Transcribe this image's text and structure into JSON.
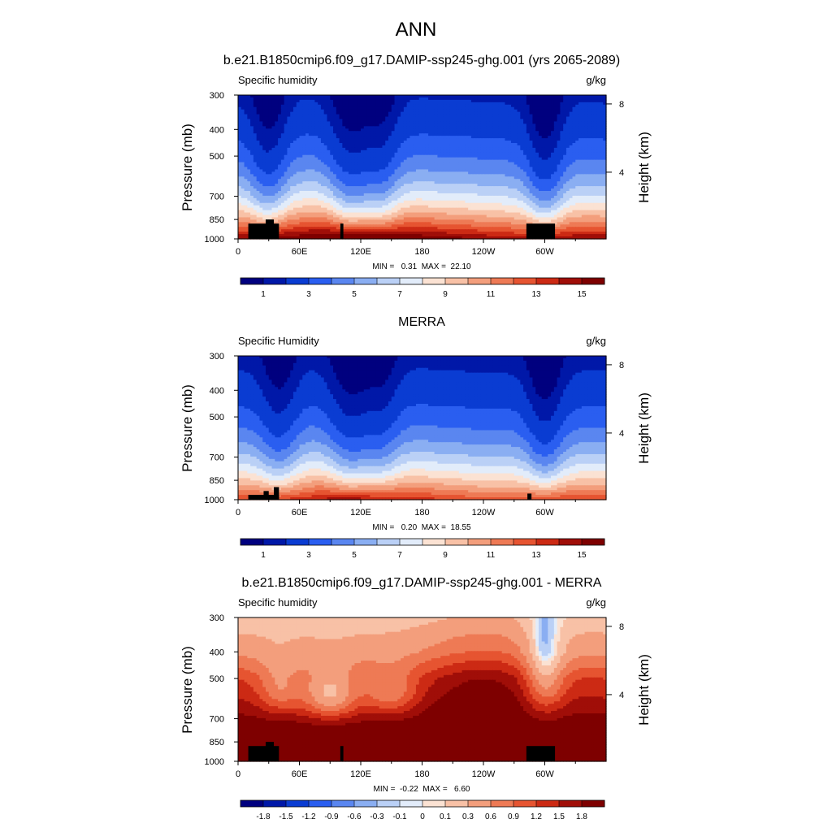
{
  "figure": {
    "main_title": "ANN"
  },
  "colors": {
    "abs_scale": [
      "#00007f",
      "#0018a8",
      "#0a3cd2",
      "#2a5ef0",
      "#5a86f0",
      "#8aaef2",
      "#bad0f6",
      "#e2ecfa",
      "#fbe2d3",
      "#f8c1a6",
      "#f39e7c",
      "#ee7a55",
      "#e65431",
      "#cc2a14",
      "#a00e08",
      "#7e0000"
    ],
    "diff_scale": [
      "#00007f",
      "#0018a8",
      "#0a3cd2",
      "#2a5ef0",
      "#5a86f0",
      "#8aaef2",
      "#bad0f6",
      "#e2ecfa",
      "#fbe2d3",
      "#f8c1a6",
      "#f39e7c",
      "#ee7a55",
      "#e65431",
      "#cc2a14",
      "#a00e08",
      "#7e0000"
    ],
    "land_mask": "#000000"
  },
  "chart_data": [
    {
      "type": "heatmap",
      "title": "b.e21.B1850cmip6.f09_g17.DAMIP-ssp245-ghg.001 (yrs 2065-2089)",
      "left_label": "Specific humidity",
      "right_label": "g/kg",
      "ylabel": "Pressure (mb)",
      "ylabel_right": "Height (km)",
      "x_ticks": [
        "0",
        "60E",
        "120E",
        "180",
        "120W",
        "60W"
      ],
      "x_tick_lon": [
        0,
        60,
        120,
        180,
        240,
        300
      ],
      "xlim": [
        0,
        360
      ],
      "y_ticks": [
        "300",
        "400",
        "500",
        "700",
        "850",
        "1000"
      ],
      "y_tick_values": [
        300,
        400,
        500,
        700,
        850,
        1000
      ],
      "ylim": [
        1000,
        300
      ],
      "y_scale": "log",
      "height_ticks": [
        "8",
        "4"
      ],
      "height_tick_values": [
        8,
        4
      ],
      "stats_text": "MIN =   0.31  MAX =  22.10",
      "min": 0.31,
      "max": 22.1,
      "colorbar_labels": [
        "1",
        "3",
        "5",
        "7",
        "9",
        "11",
        "13",
        "15"
      ],
      "levels": [
        0.5,
        1,
        2,
        3,
        4,
        5,
        6,
        7,
        8,
        9,
        10,
        11,
        12,
        13,
        14,
        15
      ],
      "field": {
        "surface_q": [
          [
            0,
            14
          ],
          [
            20,
            14.5
          ],
          [
            35,
            15
          ],
          [
            60,
            15
          ],
          [
            90,
            16
          ],
          [
            120,
            16
          ],
          [
            150,
            15.5
          ],
          [
            180,
            15
          ],
          [
            210,
            14.5
          ],
          [
            240,
            14
          ],
          [
            270,
            13.5
          ],
          [
            300,
            14
          ],
          [
            330,
            14
          ],
          [
            360,
            14
          ]
        ],
        "moist_lon": [
          [
            30,
            1.1
          ],
          [
            100,
            0.5
          ],
          [
            115,
            0.9
          ],
          [
            140,
            0.9
          ],
          [
            300,
            1.3
          ]
        ]
      },
      "land_blocks": [
        {
          "lon_range": [
            10,
            40
          ],
          "p_top": 880
        },
        {
          "lon_range": [
            27,
            35
          ],
          "p_top": 850
        },
        {
          "lon_range": [
            100,
            103
          ],
          "p_top": 880
        },
        {
          "lon_range": [
            282,
            310
          ],
          "p_top": 880
        }
      ]
    },
    {
      "type": "heatmap",
      "title": "MERRA",
      "left_label": "Specific Humidity",
      "right_label": "g/kg",
      "ylabel": "Pressure (mb)",
      "ylabel_right": "Height (km)",
      "x_ticks": [
        "0",
        "60E",
        "120E",
        "180",
        "120W",
        "60W"
      ],
      "x_tick_lon": [
        0,
        60,
        120,
        180,
        240,
        300
      ],
      "xlim": [
        0,
        360
      ],
      "y_ticks": [
        "300",
        "400",
        "500",
        "700",
        "850",
        "1000"
      ],
      "y_tick_values": [
        300,
        400,
        500,
        700,
        850,
        1000
      ],
      "ylim": [
        1000,
        300
      ],
      "y_scale": "log",
      "height_ticks": [
        "8",
        "4"
      ],
      "height_tick_values": [
        8,
        4
      ],
      "stats_text": "MIN =   0.20  MAX =  18.55",
      "min": 0.2,
      "max": 18.55,
      "colorbar_labels": [
        "1",
        "3",
        "5",
        "7",
        "9",
        "11",
        "13",
        "15"
      ],
      "levels": [
        0.5,
        1,
        2,
        3,
        4,
        5,
        6,
        7,
        8,
        9,
        10,
        11,
        12,
        13,
        14,
        15
      ],
      "field": {
        "surface_q": [
          [
            0,
            12
          ],
          [
            30,
            12
          ],
          [
            60,
            12.5
          ],
          [
            90,
            13.5
          ],
          [
            120,
            13.5
          ],
          [
            150,
            13
          ],
          [
            180,
            12.5
          ],
          [
            210,
            12
          ],
          [
            240,
            11.5
          ],
          [
            270,
            11.5
          ],
          [
            300,
            12
          ],
          [
            330,
            12
          ],
          [
            360,
            12
          ]
        ],
        "moist_lon": [
          [
            40,
            0.9
          ],
          [
            100,
            0.5
          ],
          [
            115,
            0.8
          ],
          [
            140,
            0.8
          ],
          [
            300,
            1.2
          ]
        ]
      },
      "land_blocks": [
        {
          "lon_range": [
            10,
            40
          ],
          "p_top": 960
        },
        {
          "lon_range": [
            25,
            30
          ],
          "p_top": 930
        },
        {
          "lon_range": [
            35,
            40
          ],
          "p_top": 900
        },
        {
          "lon_range": [
            283,
            287
          ],
          "p_top": 950
        }
      ]
    },
    {
      "type": "heatmap",
      "title": "b.e21.B1850cmip6.f09_g17.DAMIP-ssp245-ghg.001 - MERRA",
      "left_label": "Specific humidity",
      "right_label": "g/kg",
      "ylabel": "Pressure (mb)",
      "ylabel_right": "Height (km)",
      "x_ticks": [
        "0",
        "60E",
        "120E",
        "180",
        "120W",
        "60W"
      ],
      "x_tick_lon": [
        0,
        60,
        120,
        180,
        240,
        300
      ],
      "xlim": [
        0,
        360
      ],
      "y_ticks": [
        "300",
        "400",
        "500",
        "700",
        "850",
        "1000"
      ],
      "y_tick_values": [
        300,
        400,
        500,
        700,
        850,
        1000
      ],
      "ylim": [
        1000,
        300
      ],
      "y_scale": "log",
      "height_ticks": [
        "8",
        "4"
      ],
      "height_tick_values": [
        8,
        4
      ],
      "stats_text": "MIN =  -0.22  MAX =   6.60",
      "min": -0.22,
      "max": 6.6,
      "colorbar_labels": [
        "-1.8",
        "-1.5",
        "-1.2",
        "-0.9",
        "-0.6",
        "-0.3",
        "-0.1",
        "0",
        "0.1",
        "0.3",
        "0.6",
        "0.9",
        "1.2",
        "1.5",
        "1.8"
      ],
      "levels": [
        -1.8,
        -1.5,
        -1.2,
        -0.9,
        -0.6,
        -0.3,
        -0.1,
        0,
        0.1,
        0.3,
        0.6,
        0.9,
        1.2,
        1.5,
        1.8
      ],
      "field": {
        "diff_profile": [
          [
            300,
            0.15
          ],
          [
            400,
            0.5
          ],
          [
            500,
            1.2
          ],
          [
            700,
            1.9
          ],
          [
            850,
            2.4
          ],
          [
            1000,
            2.2
          ]
        ],
        "diff_features": [
          {
            "lon": 300,
            "p": 330,
            "amp": -0.4,
            "wlon": 5,
            "wp": 45
          },
          {
            "lon": 300,
            "p": 500,
            "amp": -1.0,
            "wlon": 14,
            "wp": 120
          },
          {
            "lon": 90,
            "p": 580,
            "amp": -1.2,
            "wlon": 20,
            "wp": 90
          },
          {
            "lon": 150,
            "p": 570,
            "amp": -0.8,
            "wlon": 18,
            "wp": 80
          },
          {
            "lon": 40,
            "p": 550,
            "amp": -0.7,
            "wlon": 15,
            "wp": 90
          },
          {
            "lon": 240,
            "p": 520,
            "amp": 0.6,
            "wlon": 40,
            "wp": 150
          }
        ]
      },
      "land_blocks": [
        {
          "lon_range": [
            10,
            40
          ],
          "p_top": 880
        },
        {
          "lon_range": [
            27,
            35
          ],
          "p_top": 850
        },
        {
          "lon_range": [
            100,
            103
          ],
          "p_top": 880
        },
        {
          "lon_range": [
            282,
            310
          ],
          "p_top": 880
        }
      ]
    }
  ]
}
